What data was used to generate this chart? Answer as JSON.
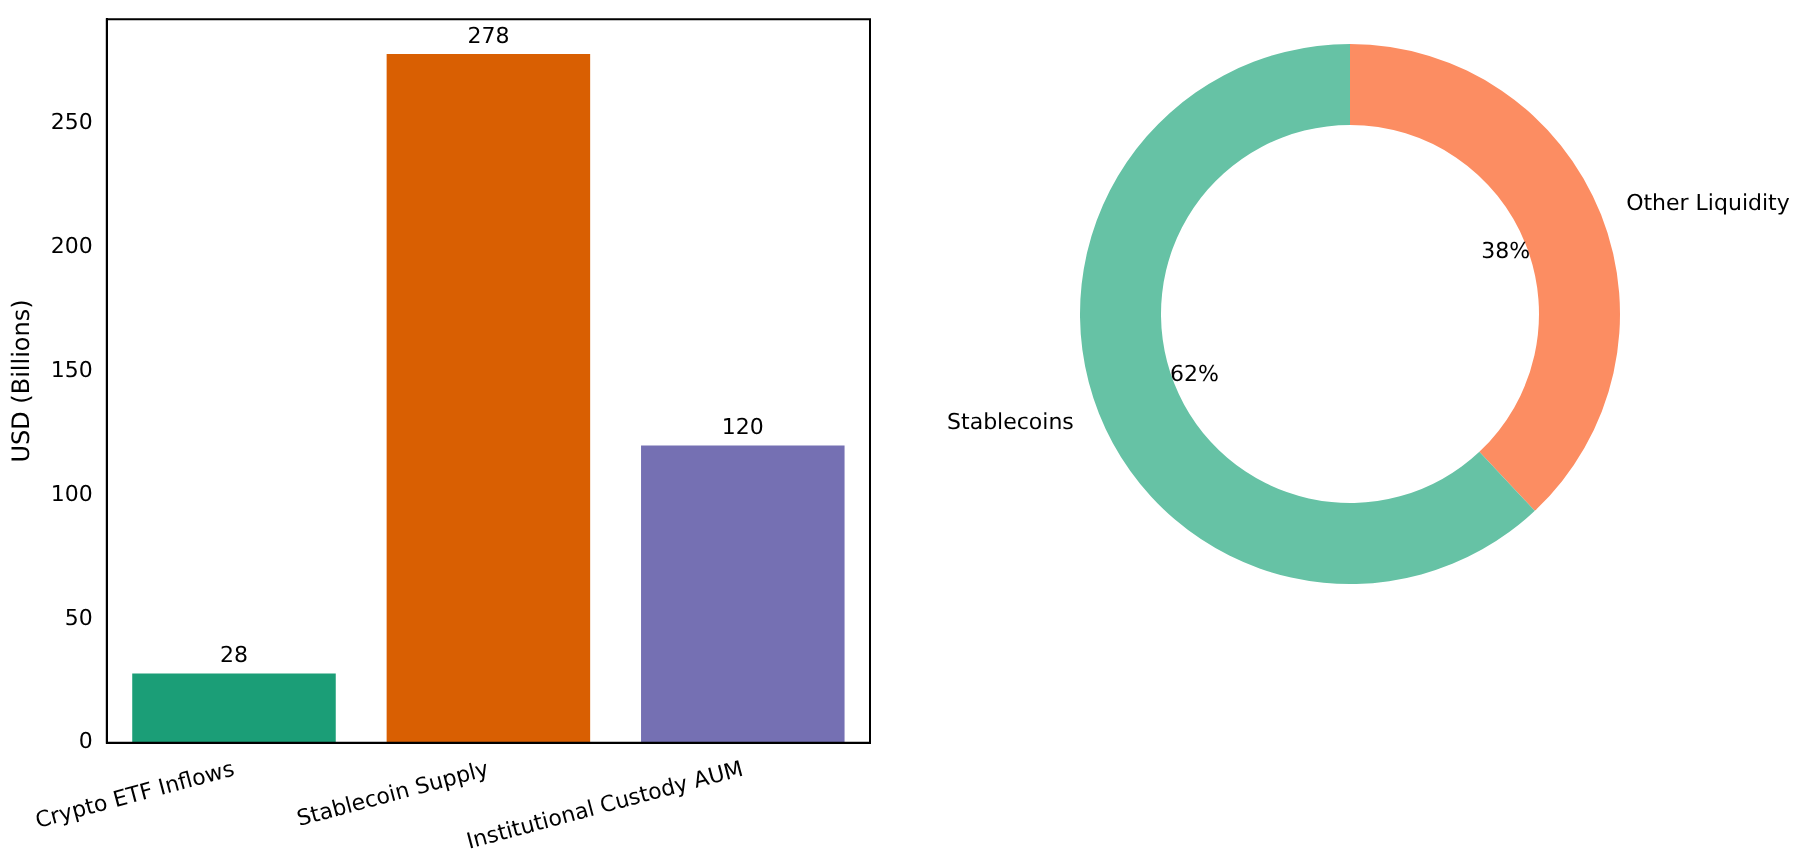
{
  "chart_data": [
    {
      "type": "bar",
      "ylabel": "USD (Billions)",
      "categories": [
        "Crypto ETF Inflows",
        "Stablecoin Supply",
        "Institutional Custody AUM"
      ],
      "values": [
        28,
        278,
        120
      ],
      "colors": [
        "#1b9e77",
        "#d95f02",
        "#7570b3"
      ],
      "ylim": [
        0,
        292
      ],
      "yticks": [
        0,
        50,
        100,
        150,
        200,
        250
      ],
      "data_labels": true,
      "legend": false
    },
    {
      "type": "donut",
      "categories": [
        "Other Liquidity",
        "Stablecoins"
      ],
      "values": [
        38,
        62
      ],
      "colors": [
        "#fc8d62",
        "#66c2a5"
      ],
      "value_labels": [
        "38%",
        "62%"
      ],
      "legend": false
    }
  ]
}
